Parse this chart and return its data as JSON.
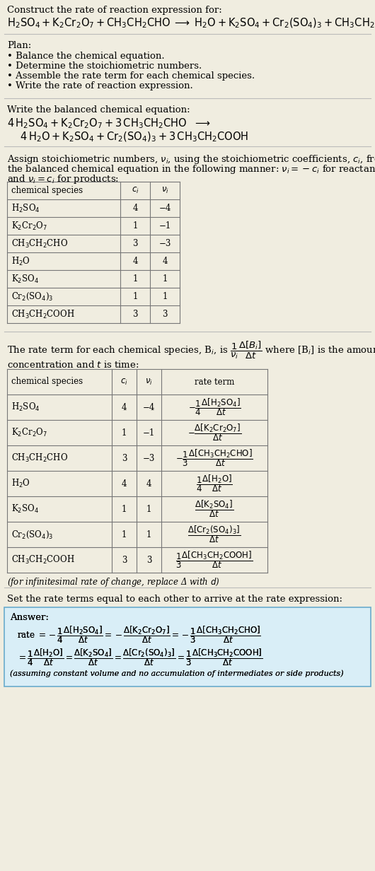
{
  "bg_color": "#f0ede0",
  "text_color": "#000000",
  "title_line1": "Construct the rate of reaction expression for:",
  "plan_title": "Plan:",
  "plan_items": [
    "• Balance the chemical equation.",
    "• Determine the stoichiometric numbers.",
    "• Assemble the rate term for each chemical species.",
    "• Write the rate of reaction expression."
  ],
  "balanced_title": "Write the balanced chemical equation:",
  "assign_text1": "Assign stoichiometric numbers, $\\nu_i$, using the stoichiometric coefficients, $c_i$, from",
  "assign_text2": "the balanced chemical equation in the following manner: $\\nu_i = -c_i$ for reactants",
  "assign_text3": "and $\\nu_i = c_i$ for products:",
  "table1_headers": [
    "chemical species",
    "$c_i$",
    "$\\nu_i$"
  ],
  "table1_rows": [
    [
      "H$_2$SO$_4$",
      "4",
      "−4"
    ],
    [
      "K$_2$Cr$_2$O$_7$",
      "1",
      "−1"
    ],
    [
      "CH$_3$CH$_2$CHO",
      "3",
      "−3"
    ],
    [
      "H$_2$O",
      "4",
      "4"
    ],
    [
      "K$_2$SO$_4$",
      "1",
      "1"
    ],
    [
      "Cr$_2$(SO$_4$)$_3$",
      "1",
      "1"
    ],
    [
      "CH$_3$CH$_2$COOH",
      "3",
      "3"
    ]
  ],
  "rate_text1": "The rate term for each chemical species, B$_i$, is $\\dfrac{1}{\\nu_i}\\dfrac{\\Delta[B_i]}{\\Delta t}$ where [B$_i$] is the amount",
  "rate_text2": "concentration and $t$ is time:",
  "table2_headers": [
    "chemical species",
    "$c_i$",
    "$\\nu_i$",
    "rate term"
  ],
  "table2_rows": [
    [
      "H$_2$SO$_4$",
      "4",
      "−4",
      "$-\\dfrac{1}{4}\\dfrac{\\Delta[\\mathrm{H_2SO_4}]}{\\Delta t}$"
    ],
    [
      "K$_2$Cr$_2$O$_7$",
      "1",
      "−1",
      "$-\\dfrac{\\Delta[\\mathrm{K_2Cr_2O_7}]}{\\Delta t}$"
    ],
    [
      "CH$_3$CH$_2$CHO",
      "3",
      "−3",
      "$-\\dfrac{1}{3}\\dfrac{\\Delta[\\mathrm{CH_3CH_2CHO}]}{\\Delta t}$"
    ],
    [
      "H$_2$O",
      "4",
      "4",
      "$\\dfrac{1}{4}\\dfrac{\\Delta[\\mathrm{H_2O}]}{\\Delta t}$"
    ],
    [
      "K$_2$SO$_4$",
      "1",
      "1",
      "$\\dfrac{\\Delta[\\mathrm{K_2SO_4}]}{\\Delta t}$"
    ],
    [
      "Cr$_2$(SO$_4$)$_3$",
      "1",
      "1",
      "$\\dfrac{\\Delta[\\mathrm{Cr_2(SO_4)_3}]}{\\Delta t}$"
    ],
    [
      "CH$_3$CH$_2$COOH",
      "3",
      "3",
      "$\\dfrac{1}{3}\\dfrac{\\Delta[\\mathrm{CH_3CH_2COOH}]}{\\Delta t}$"
    ]
  ],
  "infinitesimal_note": "(for infinitesimal rate of change, replace Δ with $d$)",
  "set_rate_text": "Set the rate terms equal to each other to arrive at the rate expression:",
  "answer_label": "Answer:",
  "answer_box_color": "#d9eef7",
  "answer_border_color": "#6aabcc"
}
